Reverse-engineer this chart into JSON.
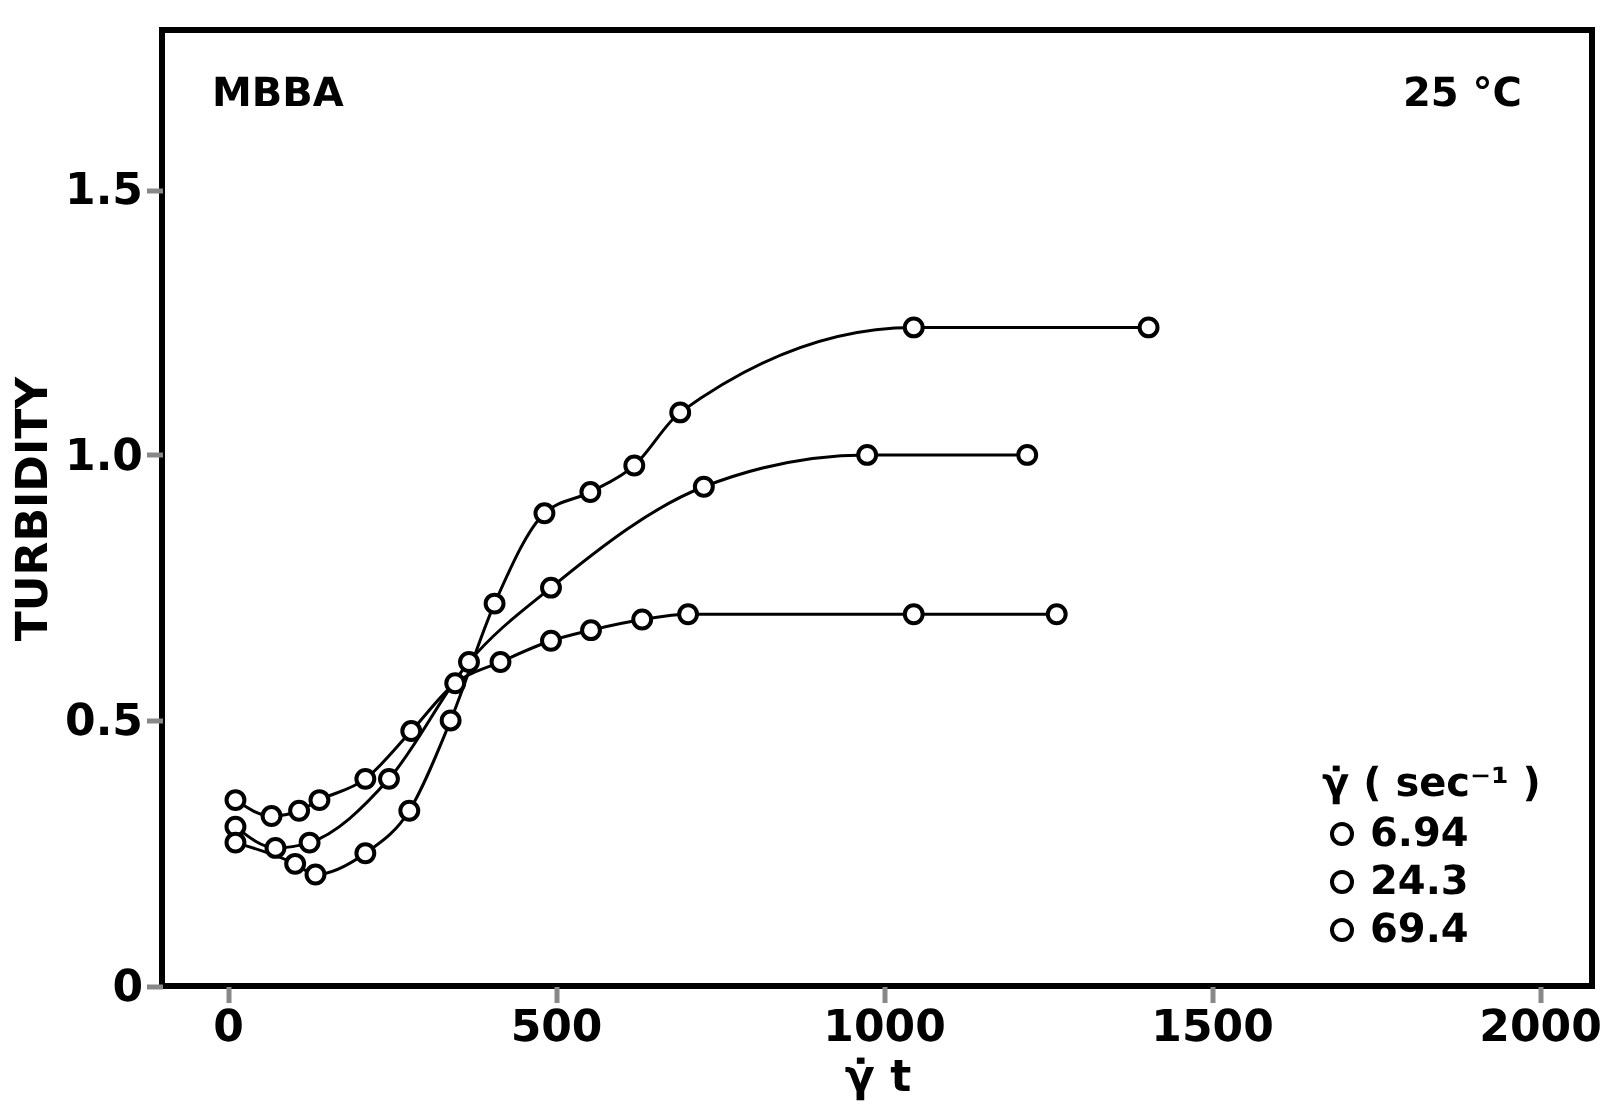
{
  "chart_data": {
    "type": "line",
    "xlabel": "γ̇ t",
    "ylabel": "TURBIDITY",
    "legend_title": "γ̇  ( sec⁻¹ )",
    "annotations": [
      "MBBA",
      "25 °C"
    ],
    "xlim": [
      -100,
      2080
    ],
    "ylim": [
      0,
      1.8
    ],
    "xticks": [
      0,
      500,
      1000,
      1500,
      2000
    ],
    "yticks": [
      0,
      {
        "value": 0.5,
        "label": "0.5"
      },
      {
        "value": 1.0,
        "label": "1.0"
      },
      {
        "value": 1.5,
        "label": "1.5"
      }
    ],
    "grid": false,
    "legend": "bottom right",
    "marker": "circle",
    "line_style": "solid",
    "series": [
      {
        "name": "6.94",
        "color": "#000000",
        "x": [
          12,
          67,
          109,
          140,
          210,
          280,
          347,
          416,
          493,
          554,
          632,
          702,
          1046,
          1264
        ],
        "values": [
          0.35,
          0.32,
          0.33,
          0.35,
          0.39,
          0.48,
          0.57,
          0.61,
          0.65,
          0.67,
          0.69,
          0.7,
          0.7,
          0.7
        ]
      },
      {
        "name": "24.3",
        "color": "#000000",
        "x": [
          12,
          73,
          125,
          246,
          368,
          493,
          726,
          975,
          1219
        ],
        "values": [
          0.3,
          0.26,
          0.27,
          0.39,
          0.61,
          0.75,
          0.94,
          1.0,
          1.0
        ]
      },
      {
        "name": "69.4",
        "color": "#000000",
        "x": [
          12,
          103,
          134,
          210,
          277,
          340,
          407,
          483,
          553,
          620,
          690,
          1046,
          1404
        ],
        "values": [
          0.27,
          0.23,
          0.21,
          0.25,
          0.33,
          0.5,
          0.72,
          0.89,
          0.93,
          0.98,
          1.08,
          1.24,
          1.24
        ]
      }
    ]
  }
}
